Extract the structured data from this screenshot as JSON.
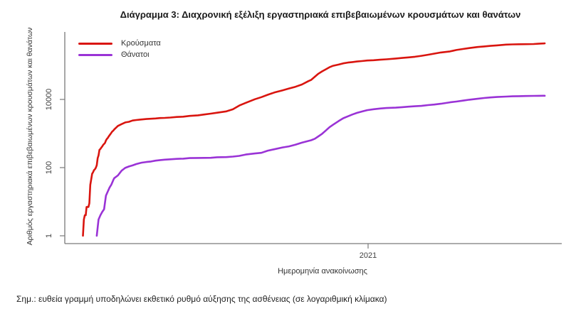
{
  "chart": {
    "title": "Διάγραμμα 3: Διαχρονική εξέλιξη εργαστηριακά επιβεβαιωμένων κρουσμάτων και θανάτων",
    "note": "Σημ.: ευθεία γραμμή υποδηλώνει εκθετικό ρυθμό αύξησης της ασθένειας (σε λογαριθμική κλίμακα)"
  },
  "chart_data": {
    "type": "line",
    "title": "Διάγραμμα 3: Διαχρονική εξέλιξη εργαστηριακά επιβεβαιωμένων κρουσμάτων και θανάτων",
    "xlabel": "Ημερομηνία ανακοίνωσης",
    "ylabel": "Αριθμός εργαστηριακά επιβεβαιωμένων κρουσμάτων και θανάτων",
    "y_scale": "log10",
    "ylim": [
      1,
      900000
    ],
    "x_range": [
      "2020-02-26",
      "2021-07-12"
    ],
    "grid": false,
    "legend_position": "top-left",
    "yticks": [
      {
        "label": "1",
        "value": 1
      },
      {
        "label": "100",
        "value": 100
      },
      {
        "label": "10000",
        "value": 10000
      }
    ],
    "xticks": [
      {
        "label": "2021",
        "date": "2021-01-01"
      }
    ],
    "series": [
      {
        "name": "Κρούσματα",
        "color": "#d9150f",
        "points": [
          [
            "2020-02-26",
            1
          ],
          [
            "2020-02-27",
            3
          ],
          [
            "2020-02-28",
            4
          ],
          [
            "2020-02-29",
            4
          ],
          [
            "2020-03-01",
            7
          ],
          [
            "2020-03-02",
            7
          ],
          [
            "2020-03-03",
            7
          ],
          [
            "2020-03-04",
            9
          ],
          [
            "2020-03-05",
            31
          ],
          [
            "2020-03-06",
            45
          ],
          [
            "2020-03-07",
            66
          ],
          [
            "2020-03-08",
            73
          ],
          [
            "2020-03-09",
            84
          ],
          [
            "2020-03-10",
            89
          ],
          [
            "2020-03-11",
            99
          ],
          [
            "2020-03-12",
            117
          ],
          [
            "2020-03-13",
            190
          ],
          [
            "2020-03-14",
            228
          ],
          [
            "2020-03-15",
            331
          ],
          [
            "2020-03-16",
            352
          ],
          [
            "2020-03-17",
            387
          ],
          [
            "2020-03-18",
            418
          ],
          [
            "2020-03-19",
            464
          ],
          [
            "2020-03-20",
            495
          ],
          [
            "2020-03-21",
            530
          ],
          [
            "2020-03-22",
            624
          ],
          [
            "2020-03-23",
            695
          ],
          [
            "2020-03-24",
            743
          ],
          [
            "2020-03-25",
            821
          ],
          [
            "2020-03-26",
            892
          ],
          [
            "2020-03-27",
            966
          ],
          [
            "2020-03-28",
            1061
          ],
          [
            "2020-03-29",
            1156
          ],
          [
            "2020-03-30",
            1212
          ],
          [
            "2020-03-31",
            1314
          ],
          [
            "2020-04-04",
            1673
          ],
          [
            "2020-04-08",
            1884
          ],
          [
            "2020-04-12",
            2114
          ],
          [
            "2020-04-16",
            2207
          ],
          [
            "2020-04-20",
            2401
          ],
          [
            "2020-04-24",
            2490
          ],
          [
            "2020-04-28",
            2566
          ],
          [
            "2020-04-30",
            2591
          ],
          [
            "2020-05-05",
            2663
          ],
          [
            "2020-05-10",
            2716
          ],
          [
            "2020-05-15",
            2770
          ],
          [
            "2020-05-20",
            2840
          ],
          [
            "2020-05-25",
            2878
          ],
          [
            "2020-05-31",
            2937
          ],
          [
            "2020-06-07",
            3058
          ],
          [
            "2020-06-14",
            3112
          ],
          [
            "2020-06-21",
            3287
          ],
          [
            "2020-06-30",
            3409
          ],
          [
            "2020-07-07",
            3622
          ],
          [
            "2020-07-14",
            3826
          ],
          [
            "2020-07-21",
            4077
          ],
          [
            "2020-07-31",
            4477
          ],
          [
            "2020-08-07",
            5123
          ],
          [
            "2020-08-14",
            6632
          ],
          [
            "2020-08-21",
            7934
          ],
          [
            "2020-08-31",
            10134
          ],
          [
            "2020-09-07",
            11663
          ],
          [
            "2020-09-14",
            13730
          ],
          [
            "2020-09-21",
            15928
          ],
          [
            "2020-09-30",
            18475
          ],
          [
            "2020-10-07",
            20947
          ],
          [
            "2020-10-14",
            23495
          ],
          [
            "2020-10-21",
            27334
          ],
          [
            "2020-10-28",
            34299
          ],
          [
            "2020-10-31",
            37196
          ],
          [
            "2020-11-04",
            46103
          ],
          [
            "2020-11-08",
            56698
          ],
          [
            "2020-11-12",
            66637
          ],
          [
            "2020-11-16",
            76403
          ],
          [
            "2020-11-20",
            87812
          ],
          [
            "2020-11-24",
            97288
          ],
          [
            "2020-11-30",
            105271
          ],
          [
            "2020-12-05",
            114568
          ],
          [
            "2020-12-10",
            120605
          ],
          [
            "2020-12-15",
            124534
          ],
          [
            "2020-12-20",
            129695
          ],
          [
            "2020-12-25",
            133457
          ],
          [
            "2020-12-31",
            138850
          ],
          [
            "2021-01-07",
            141453
          ],
          [
            "2021-01-14",
            146278
          ],
          [
            "2021-01-21",
            150479
          ],
          [
            "2021-01-31",
            158716
          ],
          [
            "2021-02-07",
            164322
          ],
          [
            "2021-02-14",
            171108
          ],
          [
            "2021-02-21",
            178630
          ],
          [
            "2021-02-28",
            190235
          ],
          [
            "2021-03-07",
            203910
          ],
          [
            "2021-03-14",
            221147
          ],
          [
            "2021-03-21",
            238210
          ],
          [
            "2021-03-31",
            255733
          ],
          [
            "2021-04-07",
            281570
          ],
          [
            "2021-04-14",
            300992
          ],
          [
            "2021-04-21",
            320629
          ],
          [
            "2021-04-30",
            344917
          ],
          [
            "2021-05-07",
            357860
          ],
          [
            "2021-05-14",
            372043
          ],
          [
            "2021-05-21",
            384409
          ],
          [
            "2021-05-31",
            405542
          ],
          [
            "2021-06-07",
            411216
          ],
          [
            "2021-06-14",
            414833
          ],
          [
            "2021-06-21",
            418243
          ],
          [
            "2021-06-30",
            422234
          ],
          [
            "2021-07-05",
            428963
          ],
          [
            "2021-07-12",
            441232
          ]
        ]
      },
      {
        "name": "Θάνατοι",
        "color": "#9a33d6",
        "points": [
          [
            "2020-03-12",
            1
          ],
          [
            "2020-03-14",
            3
          ],
          [
            "2020-03-16",
            4
          ],
          [
            "2020-03-18",
            5
          ],
          [
            "2020-03-20",
            6
          ],
          [
            "2020-03-22",
            15
          ],
          [
            "2020-03-24",
            20
          ],
          [
            "2020-03-26",
            26
          ],
          [
            "2020-03-28",
            32
          ],
          [
            "2020-03-30",
            43
          ],
          [
            "2020-03-31",
            49
          ],
          [
            "2020-04-04",
            59
          ],
          [
            "2020-04-08",
            81
          ],
          [
            "2020-04-12",
            98
          ],
          [
            "2020-04-16",
            108
          ],
          [
            "2020-04-20",
            116
          ],
          [
            "2020-04-24",
            127
          ],
          [
            "2020-04-28",
            136
          ],
          [
            "2020-04-30",
            140
          ],
          [
            "2020-05-05",
            146
          ],
          [
            "2020-05-10",
            151
          ],
          [
            "2020-05-15",
            160
          ],
          [
            "2020-05-20",
            166
          ],
          [
            "2020-05-25",
            171
          ],
          [
            "2020-05-31",
            175
          ],
          [
            "2020-06-07",
            180
          ],
          [
            "2020-06-14",
            183
          ],
          [
            "2020-06-21",
            190
          ],
          [
            "2020-06-30",
            192
          ],
          [
            "2020-07-07",
            193
          ],
          [
            "2020-07-14",
            194
          ],
          [
            "2020-07-21",
            201
          ],
          [
            "2020-07-31",
            203
          ],
          [
            "2020-08-07",
            210
          ],
          [
            "2020-08-14",
            221
          ],
          [
            "2020-08-21",
            242
          ],
          [
            "2020-08-31",
            260
          ],
          [
            "2020-09-07",
            271
          ],
          [
            "2020-09-14",
            315
          ],
          [
            "2020-09-21",
            344
          ],
          [
            "2020-09-30",
            391
          ],
          [
            "2020-10-07",
            420
          ],
          [
            "2020-10-14",
            469
          ],
          [
            "2020-10-21",
            539
          ],
          [
            "2020-10-28",
            603
          ],
          [
            "2020-10-31",
            635
          ],
          [
            "2020-11-04",
            702
          ],
          [
            "2020-11-08",
            826
          ],
          [
            "2020-11-12",
            980
          ],
          [
            "2020-11-16",
            1222
          ],
          [
            "2020-11-20",
            1527
          ],
          [
            "2020-11-24",
            1815
          ],
          [
            "2020-11-30",
            2321
          ],
          [
            "2020-12-05",
            2804
          ],
          [
            "2020-12-10",
            3194
          ],
          [
            "2020-12-15",
            3625
          ],
          [
            "2020-12-20",
            4044
          ],
          [
            "2020-12-25",
            4402
          ],
          [
            "2020-12-31",
            4838
          ],
          [
            "2021-01-07",
            5146
          ],
          [
            "2021-01-14",
            5421
          ],
          [
            "2021-01-21",
            5598
          ],
          [
            "2021-01-31",
            5742
          ],
          [
            "2021-02-07",
            5922
          ],
          [
            "2021-02-14",
            6126
          ],
          [
            "2021-02-21",
            6321
          ],
          [
            "2021-02-28",
            6468
          ],
          [
            "2021-03-07",
            6797
          ],
          [
            "2021-03-14",
            7091
          ],
          [
            "2021-03-21",
            7462
          ],
          [
            "2021-03-31",
            8232
          ],
          [
            "2021-04-07",
            8680
          ],
          [
            "2021-04-14",
            9239
          ],
          [
            "2021-04-21",
            9788
          ],
          [
            "2021-04-30",
            10453
          ],
          [
            "2021-05-07",
            11029
          ],
          [
            "2021-05-14",
            11415
          ],
          [
            "2021-05-21",
            11772
          ],
          [
            "2021-05-31",
            12122
          ],
          [
            "2021-06-07",
            12331
          ],
          [
            "2021-06-14",
            12478
          ],
          [
            "2021-06-21",
            12589
          ],
          [
            "2021-06-30",
            12737
          ],
          [
            "2021-07-05",
            12777
          ],
          [
            "2021-07-12",
            12806
          ]
        ]
      }
    ]
  }
}
